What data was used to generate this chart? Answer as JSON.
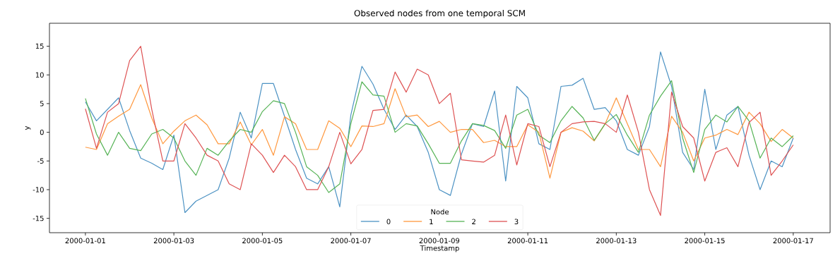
{
  "chart_data": {
    "type": "line",
    "title": "Observed nodes from one temporal SCM",
    "xlabel": "Timestamp",
    "ylabel": "y",
    "legend_title": "Node",
    "legend": "bottom",
    "marker": "none",
    "xlim": [
      "1999-12-31T04:30",
      "2000-01-17T20:00"
    ],
    "xticks": [
      "2000-01-01",
      "2000-01-03",
      "2000-01-05",
      "2000-01-07",
      "2000-01-09",
      "2000-01-11",
      "2000-01-13",
      "2000-01-15",
      "2000-01-17"
    ],
    "ylim": [
      -17.5,
      19
    ],
    "yticks": [
      -15,
      -10,
      -5,
      0,
      5,
      10,
      15
    ],
    "x": [
      "2000-01-01T00:00",
      "2000-01-01T06:00",
      "2000-01-01T12:00",
      "2000-01-01T18:00",
      "2000-01-02T00:00",
      "2000-01-02T06:00",
      "2000-01-02T12:00",
      "2000-01-02T18:00",
      "2000-01-03T00:00",
      "2000-01-03T06:00",
      "2000-01-03T12:00",
      "2000-01-03T18:00",
      "2000-01-04T00:00",
      "2000-01-04T06:00",
      "2000-01-04T12:00",
      "2000-01-04T18:00",
      "2000-01-05T00:00",
      "2000-01-05T06:00",
      "2000-01-05T12:00",
      "2000-01-05T18:00",
      "2000-01-06T00:00",
      "2000-01-06T06:00",
      "2000-01-06T12:00",
      "2000-01-06T18:00",
      "2000-01-07T00:00",
      "2000-01-07T06:00",
      "2000-01-07T12:00",
      "2000-01-07T18:00",
      "2000-01-08T00:00",
      "2000-01-08T06:00",
      "2000-01-08T12:00",
      "2000-01-08T18:00",
      "2000-01-09T00:00",
      "2000-01-09T06:00",
      "2000-01-09T12:00",
      "2000-01-09T18:00",
      "2000-01-10T00:00",
      "2000-01-10T06:00",
      "2000-01-10T12:00",
      "2000-01-10T18:00",
      "2000-01-11T00:00",
      "2000-01-11T06:00",
      "2000-01-11T12:00",
      "2000-01-11T18:00",
      "2000-01-12T00:00",
      "2000-01-12T06:00",
      "2000-01-12T12:00",
      "2000-01-12T18:00",
      "2000-01-13T00:00",
      "2000-01-13T06:00",
      "2000-01-13T12:00",
      "2000-01-13T18:00",
      "2000-01-14T00:00",
      "2000-01-14T06:00",
      "2000-01-14T12:00",
      "2000-01-14T18:00",
      "2000-01-15T00:00",
      "2000-01-15T06:00",
      "2000-01-15T12:00",
      "2000-01-15T18:00",
      "2000-01-16T00:00",
      "2000-01-16T06:00",
      "2000-01-16T12:00",
      "2000-01-16T18:00",
      "2000-01-17T00:00"
    ],
    "series": [
      {
        "name": "0",
        "color": "#4c92c3",
        "values": [
          5.3,
          2,
          4,
          6,
          0.3,
          -4.5,
          -5.4,
          -6.5,
          -0.5,
          -14,
          -12,
          -11,
          -10,
          -4.5,
          3.5,
          -1,
          8.5,
          8.5,
          2.8,
          -3,
          -8,
          -9,
          -6,
          -13,
          3,
          11.5,
          8.4,
          4,
          0.5,
          3,
          1,
          -3.5,
          -10,
          -11,
          -3.8,
          1.5,
          1,
          7.2,
          -8.5,
          8,
          6,
          -2,
          -3,
          8,
          8.2,
          9.4,
          4,
          4.3,
          2,
          -3,
          -4,
          1,
          14,
          8,
          -3.5,
          -6.5,
          7.5,
          -3,
          3,
          4.5,
          -4,
          -10,
          -5,
          -6,
          -1
        ]
      },
      {
        "name": "1",
        "color": "#ff983e",
        "values": [
          -2.6,
          -3,
          1.5,
          2.8,
          4,
          8.3,
          2.5,
          -2,
          0.2,
          2,
          3,
          1.3,
          -2,
          -2,
          1.8,
          -2.2,
          0.5,
          -4,
          2.7,
          1.5,
          -3,
          -3,
          2,
          0.7,
          -2.5,
          1.1,
          1,
          1.5,
          7.6,
          2.7,
          3,
          1,
          1.9,
          0,
          0.5,
          0.5,
          -1.8,
          -1.4,
          -2.5,
          -2.5,
          1.3,
          0,
          -8,
          0,
          0.8,
          0.2,
          -1.5,
          1.5,
          6,
          1.5,
          -3,
          -3,
          -6,
          2.8,
          0,
          -5,
          -1,
          -0.5,
          0.5,
          -0.4,
          3.5,
          1.5,
          -1.6,
          0.5,
          -1
        ]
      },
      {
        "name": "2",
        "color": "#56b356",
        "values": [
          5.9,
          -0.3,
          -4,
          0,
          -2.8,
          -3.2,
          -0.3,
          0.5,
          -1,
          -5,
          -7.5,
          -2.8,
          -4,
          -1.5,
          0.5,
          0,
          3.6,
          5.5,
          5,
          0,
          -6,
          -7.5,
          -10.5,
          -9,
          1.5,
          8.8,
          6.5,
          6.3,
          0,
          1.5,
          1.1,
          -2,
          -5.4,
          -5.4,
          -1.5,
          1.5,
          1.2,
          0.3,
          -2.8,
          3,
          4,
          -0.5,
          -1.8,
          2,
          4.5,
          2.5,
          -1.4,
          1.5,
          3.1,
          -0.5,
          -3.5,
          3,
          6.3,
          9,
          -1,
          -7,
          0.5,
          3,
          1.8,
          4.5,
          2,
          -4.5,
          -1,
          -2.5,
          -0.6
        ]
      },
      {
        "name": "3",
        "color": "#de5253",
        "values": [
          4.1,
          -2.8,
          3.5,
          5,
          12.5,
          15,
          4,
          -5,
          -5,
          1.5,
          -1,
          -4,
          -5,
          -9,
          -10,
          -2,
          -4,
          -7,
          -4,
          -6,
          -10,
          -10,
          -6,
          0,
          -5.5,
          -3,
          3.8,
          4,
          10.5,
          7,
          11,
          10,
          5,
          6.8,
          -4.8,
          -5,
          -5.2,
          -4,
          3,
          -5.7,
          1.5,
          1,
          -6,
          0,
          1.5,
          1.8,
          1.9,
          1.5,
          0,
          6.5,
          0,
          -10,
          -14.5,
          7,
          1,
          -1,
          -8.5,
          -3.5,
          -2.7,
          -6,
          1.7,
          3.5,
          -7.5,
          -5,
          -2.2
        ]
      }
    ]
  }
}
